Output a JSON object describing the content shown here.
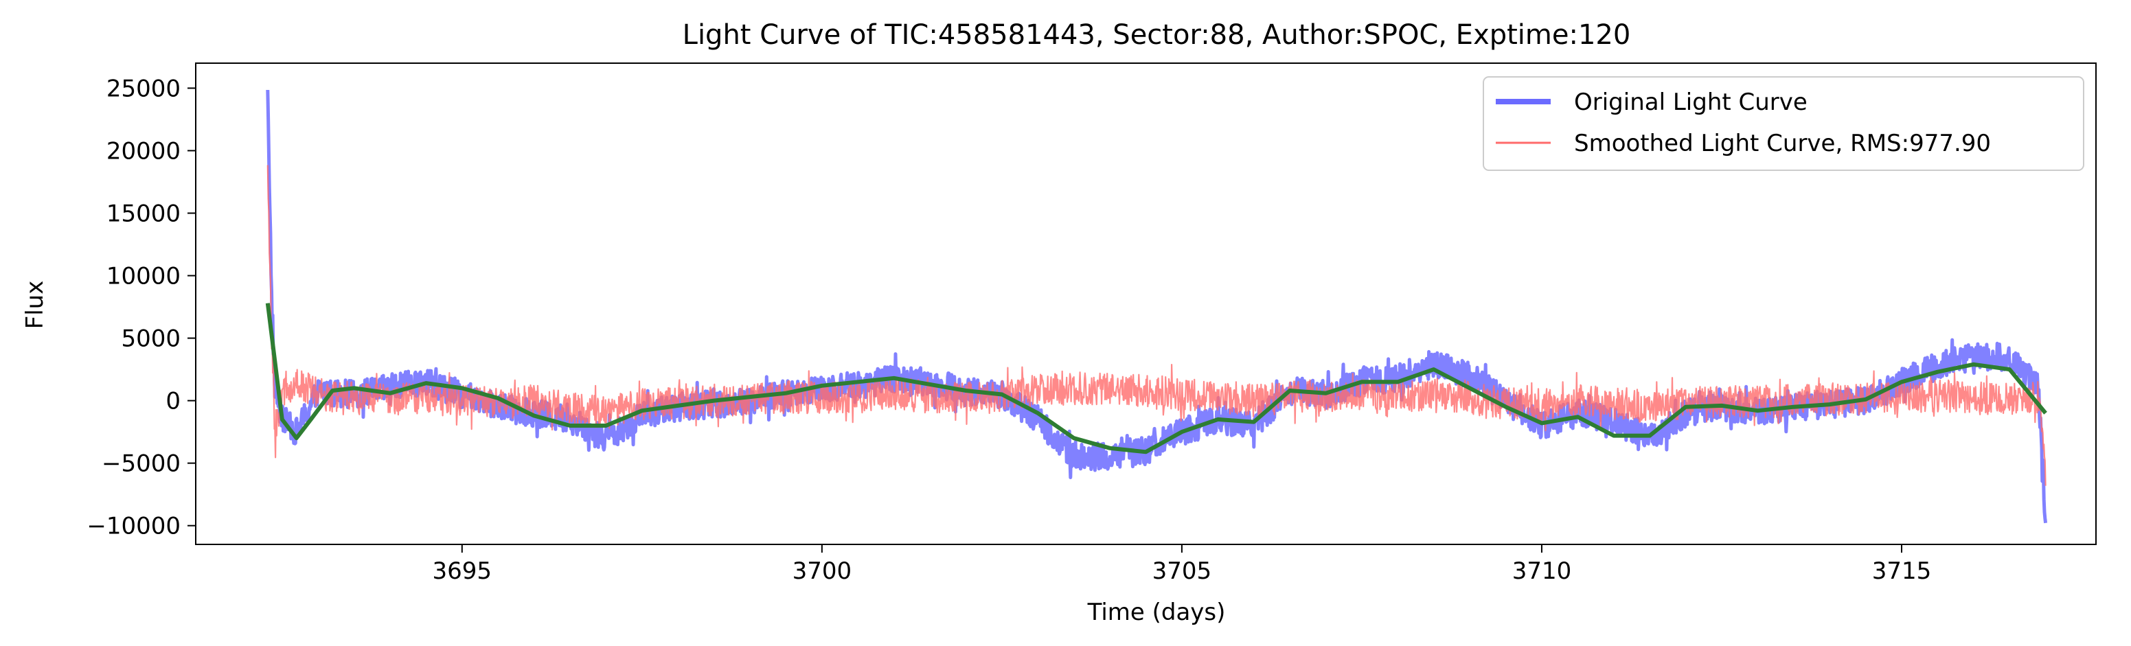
{
  "chart_data": {
    "type": "line",
    "title": "Light Curve of TIC:458581443, Sector:88, Author:SPOC, Exptime:120",
    "xlabel": "Time (days)",
    "ylabel": "Flux",
    "xlim": [
      3691.3,
      3717.7
    ],
    "ylim": [
      -11500,
      27000
    ],
    "xticks": [
      3695,
      3700,
      3705,
      3710,
      3715
    ],
    "xtick_labels": [
      "3695",
      "3700",
      "3705",
      "3710",
      "3715"
    ],
    "yticks": [
      -10000,
      -5000,
      0,
      5000,
      10000,
      15000,
      20000,
      25000
    ],
    "ytick_labels": [
      "−10000",
      "−5000",
      "0",
      "5000",
      "10000",
      "15000",
      "20000",
      "25000"
    ],
    "grid": false,
    "legend_placement": "top-right",
    "series": [
      {
        "name": "Original Light Curve",
        "color": "#6b6bff",
        "style": "thick-line",
        "noise_amplitude": 1100,
        "x": [
          3692.3,
          3692.35,
          3692.4,
          3692.5,
          3692.7,
          3693.0,
          3693.5,
          3694.0,
          3694.5,
          3695.0,
          3695.5,
          3696.0,
          3696.5,
          3697.0,
          3697.5,
          3698.0,
          3698.5,
          3699.0,
          3699.5,
          3700.0,
          3700.5,
          3701.0,
          3701.5,
          3702.0,
          3702.5,
          3703.0,
          3703.5,
          3704.0,
          3704.5,
          3705.0,
          3705.5,
          3706.0,
          3706.5,
          3707.0,
          3707.5,
          3708.0,
          3708.5,
          3709.0,
          3709.5,
          3710.0,
          3710.5,
          3711.0,
          3711.5,
          3712.0,
          3712.5,
          3713.0,
          3713.5,
          3714.0,
          3714.5,
          3715.0,
          3715.5,
          3716.0,
          3716.5,
          3716.9,
          3717.0
        ],
        "y": [
          25500,
          9000,
          1000,
          -1500,
          -2500,
          800,
          500,
          1000,
          1500,
          500,
          -500,
          -1000,
          -1500,
          -3000,
          -1200,
          -500,
          -300,
          0,
          500,
          1000,
          1200,
          1800,
          1500,
          800,
          500,
          -1500,
          -4500,
          -4500,
          -4000,
          -2500,
          -1500,
          -2000,
          800,
          500,
          1500,
          1800,
          3000,
          2000,
          0,
          -2000,
          -1000,
          -1500,
          -3000,
          -1000,
          -500,
          -800,
          -500,
          -300,
          0,
          1500,
          2800,
          3500,
          3500,
          1000,
          -9500
        ]
      },
      {
        "name": "Smoothed Light Curve, RMS:977.90",
        "color": "#ff6b6b",
        "style": "thin-line",
        "noise_amplitude": 1300,
        "x": [
          3692.3,
          3692.35,
          3692.4,
          3692.5,
          3692.7,
          3693.0,
          3693.5,
          3694.0,
          3694.5,
          3695.0,
          3695.5,
          3696.0,
          3696.5,
          3697.0,
          3697.5,
          3698.0,
          3698.5,
          3699.0,
          3699.5,
          3700.0,
          3700.5,
          3701.0,
          3701.5,
          3702.0,
          3702.5,
          3703.0,
          3703.5,
          3704.0,
          3704.5,
          3705.0,
          3705.5,
          3706.0,
          3706.5,
          3707.0,
          3707.5,
          3708.0,
          3708.5,
          3709.0,
          3709.5,
          3710.0,
          3710.5,
          3711.0,
          3711.5,
          3712.0,
          3712.5,
          3713.0,
          3713.5,
          3714.0,
          3714.5,
          3715.0,
          3715.5,
          3716.0,
          3716.5,
          3716.9,
          3717.0
        ],
        "y": [
          18000,
          6000,
          -2500,
          500,
          1500,
          500,
          200,
          0,
          300,
          0,
          -200,
          0,
          -500,
          -1000,
          -300,
          -200,
          0,
          200,
          300,
          200,
          300,
          500,
          300,
          200,
          300,
          800,
          1000,
          900,
          800,
          500,
          200,
          0,
          300,
          400,
          500,
          300,
          500,
          200,
          -200,
          -300,
          0,
          -200,
          -500,
          -200,
          0,
          -100,
          0,
          100,
          200,
          300,
          400,
          200,
          100,
          300,
          -6000
        ]
      },
      {
        "color": "#2e7d32",
        "style": "trend-line",
        "noise_amplitude": 0,
        "x": [
          3692.3,
          3692.5,
          3692.7,
          3692.9,
          3693.2,
          3693.5,
          3694.0,
          3694.5,
          3695.0,
          3695.5,
          3696.0,
          3696.5,
          3697.0,
          3697.5,
          3698.0,
          3698.5,
          3699.0,
          3699.5,
          3700.0,
          3700.5,
          3701.0,
          3701.5,
          3702.0,
          3702.5,
          3703.0,
          3703.5,
          3704.0,
          3704.5,
          3705.0,
          3705.5,
          3706.0,
          3706.5,
          3707.0,
          3707.5,
          3708.0,
          3708.5,
          3709.0,
          3709.5,
          3710.0,
          3710.5,
          3711.0,
          3711.5,
          3712.0,
          3712.5,
          3713.0,
          3713.5,
          3714.0,
          3714.5,
          3715.0,
          3715.5,
          3716.0,
          3716.5,
          3717.0
        ],
        "y": [
          7800,
          -1500,
          -3000,
          -1500,
          800,
          1000,
          600,
          1400,
          1000,
          200,
          -1200,
          -2000,
          -2000,
          -800,
          -400,
          0,
          300,
          600,
          1200,
          1500,
          1800,
          1300,
          800,
          500,
          -1000,
          -3000,
          -3800,
          -4100,
          -2500,
          -1500,
          -1700,
          800,
          600,
          1500,
          1500,
          2500,
          1000,
          -500,
          -1800,
          -1300,
          -2800,
          -2800,
          -500,
          -400,
          -800,
          -500,
          -300,
          100,
          1500,
          2300,
          2900,
          2500,
          -1000
        ]
      }
    ]
  }
}
